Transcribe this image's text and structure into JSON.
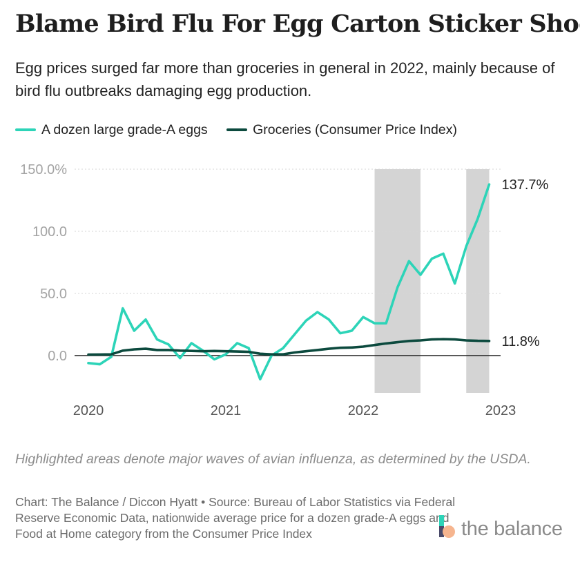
{
  "title": "Blame Bird Flu For Egg Carton Sticker Shock",
  "subtitle": "Egg prices surged far more than groceries in general in 2022, mainly because of bird flu outbreaks damaging egg production.",
  "note": "Highlighted areas denote major waves of avian influenza, as determined by the USDA.",
  "source": "Chart: The Balance / Diccon Hyatt • Source: Bureau of Labor Statistics via Federal Reserve Economic Data, nationwide average price for a dozen grade-A eggs and Food at Home category from the Consumer Price Index",
  "brand": {
    "name": "the balance"
  },
  "colors": {
    "eggs": "#2dd4b8",
    "groceries": "#0c4a3e",
    "highlight": "#d4d4d4",
    "zero_line": "#222222",
    "grid": "#d6d6d6"
  },
  "chart_data": {
    "type": "line",
    "title": "Blame Bird Flu For Egg Carton Sticker Shock",
    "ylabel": "",
    "xlabel": "",
    "ylim": [
      -30,
      150
    ],
    "xlim": [
      2020,
      2023
    ],
    "y_ticks": [
      {
        "value": 150,
        "label": "150.0%"
      },
      {
        "value": 100,
        "label": "100.0"
      },
      {
        "value": 50,
        "label": "50.0"
      },
      {
        "value": 0,
        "label": "0.0"
      }
    ],
    "x_ticks": [
      {
        "value": 2020,
        "label": "2020"
      },
      {
        "value": 2021,
        "label": "2021"
      },
      {
        "value": 2022,
        "label": "2022"
      },
      {
        "value": 2023,
        "label": "2023"
      }
    ],
    "highlight_periods": [
      {
        "start": 2022.083,
        "end": 2022.417
      },
      {
        "start": 2022.75,
        "end": 2022.917
      }
    ],
    "series": [
      {
        "name": "A dozen large grade-A eggs",
        "end_label": "137.7%",
        "x": [
          2020.0,
          2020.083,
          2020.167,
          2020.25,
          2020.333,
          2020.417,
          2020.5,
          2020.583,
          2020.667,
          2020.75,
          2020.833,
          2020.917,
          2021.0,
          2021.083,
          2021.167,
          2021.25,
          2021.333,
          2021.417,
          2021.5,
          2021.583,
          2021.667,
          2021.75,
          2021.833,
          2021.917,
          2022.0,
          2022.083,
          2022.167,
          2022.25,
          2022.333,
          2022.417,
          2022.5,
          2022.583,
          2022.667,
          2022.75,
          2022.833,
          2022.917
        ],
        "values": [
          -6,
          -7,
          -1,
          38,
          20,
          29,
          13,
          9,
          -2,
          10,
          4,
          -3,
          1,
          10,
          6,
          -19,
          0,
          6,
          17,
          28,
          35,
          29,
          18,
          20,
          31,
          26,
          26,
          55,
          76,
          65,
          78,
          82,
          58,
          88,
          110,
          137.7
        ]
      },
      {
        "name": "Groceries (Consumer Price Index)",
        "end_label": "11.8%",
        "x": [
          2020.0,
          2020.083,
          2020.167,
          2020.25,
          2020.333,
          2020.417,
          2020.5,
          2020.583,
          2020.667,
          2020.75,
          2020.833,
          2020.917,
          2021.0,
          2021.083,
          2021.167,
          2021.25,
          2021.333,
          2021.417,
          2021.5,
          2021.583,
          2021.667,
          2021.75,
          2021.833,
          2021.917,
          2022.0,
          2022.083,
          2022.167,
          2022.25,
          2022.333,
          2022.417,
          2022.5,
          2022.583,
          2022.667,
          2022.75,
          2022.833,
          2022.917
        ],
        "values": [
          0.8,
          0.9,
          1.0,
          4.0,
          5.0,
          5.5,
          4.5,
          4.5,
          4.0,
          3.8,
          3.5,
          3.7,
          3.5,
          3.3,
          3.0,
          1.5,
          1.0,
          1.0,
          2.5,
          3.5,
          4.5,
          5.5,
          6.3,
          6.5,
          7.2,
          8.5,
          9.8,
          10.8,
          11.8,
          12.2,
          13.0,
          13.2,
          13.0,
          12.2,
          11.9,
          11.8
        ]
      }
    ],
    "legend": "top-left"
  }
}
